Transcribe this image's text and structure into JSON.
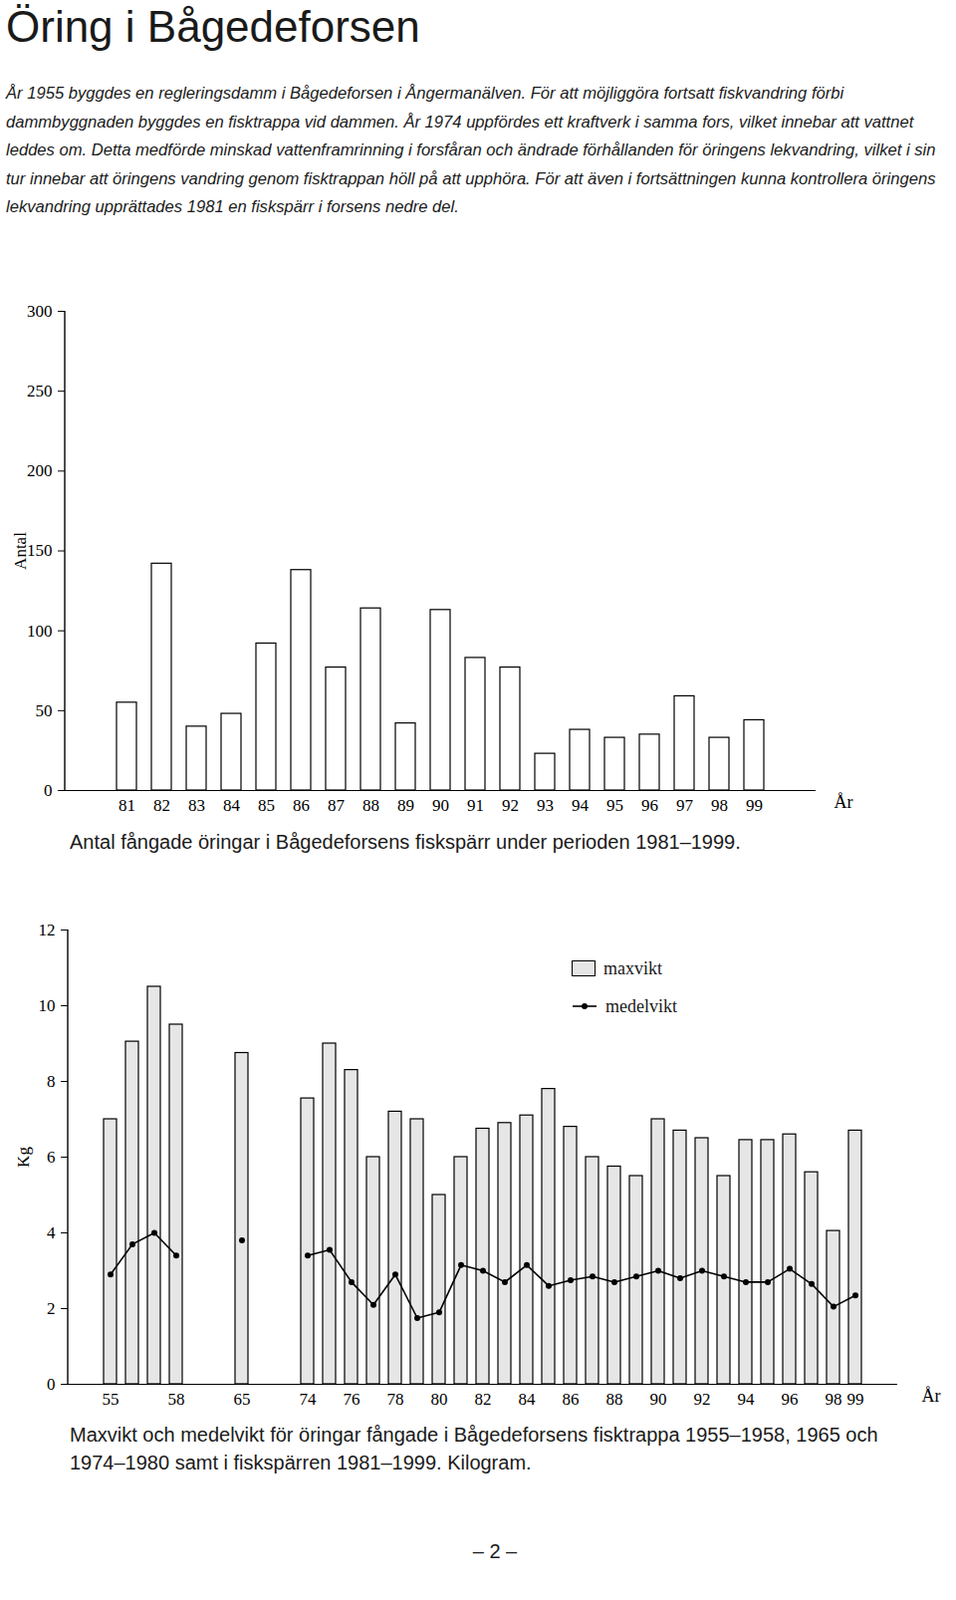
{
  "title": "Öring i Bågedeforsen",
  "text": "År 1955 byggdes en regleringsdamm i Bågedeforsen i Ångermanälven. För att möjliggöra fortsatt fiskvandring förbi dammbyggnaden byggdes en fisktrappa vid dammen. År 1974 uppfördes ett kraftverk i samma fors, vilket innebar att vattnet leddes om. Detta medförde minskad vattenframrinning i forsfåran och ändrade förhållanden för öringens lekvandring, vilket i sin tur innebar att öringens vandring genom fisktrappan höll på att upphöra. För att även i fortsättningen kunna kontrollera öringens lekvandring upprättades 1981 en fiskspärr i forsens nedre del.",
  "page_number": "– 2 –",
  "chart_data": [
    {
      "type": "bar",
      "title": "Antal fångade öringar i Bågedeforsens fiskspärr under perioden 1981–1999.",
      "x_label": "År",
      "y_label": "Antal",
      "categories": [
        "81",
        "82",
        "83",
        "84",
        "85",
        "86",
        "87",
        "88",
        "89",
        "90",
        "91",
        "92",
        "93",
        "94",
        "95",
        "96",
        "97",
        "98",
        "99"
      ],
      "values": [
        55,
        142,
        40,
        48,
        92,
        138,
        77,
        114,
        42,
        113,
        83,
        77,
        23,
        38,
        33,
        35,
        59,
        33,
        44
      ],
      "color": "#ffffff",
      "ylim": [
        0,
        300
      ],
      "yticks": [
        0,
        50,
        100,
        150,
        200,
        250,
        300
      ]
    },
    {
      "type": "bar",
      "title": "Maxvikt och medelvikt för öringar fångade i Bågedeforsens fisktrappa 1955–1958, 1965 och 1974–1980 samt i fiskspärren 1981–1999. Kilogram.",
      "x_label": "År",
      "y_label": "Kg",
      "categories": [
        "55",
        null,
        null,
        "58",
        null,
        null,
        "65",
        null,
        null,
        "74",
        null,
        "76",
        null,
        "78",
        null,
        "80",
        null,
        "82",
        null,
        "84",
        null,
        "86",
        null,
        "88",
        null,
        "90",
        null,
        "92",
        null,
        "94",
        null,
        "96",
        null,
        "98",
        "99"
      ],
      "series": [
        {
          "name": "maxvikt",
          "type": "bar",
          "color": "#e6e6e6",
          "values": [
            7.0,
            9.05,
            10.5,
            9.5,
            null,
            null,
            8.75,
            null,
            null,
            7.55,
            9.0,
            8.3,
            6.0,
            7.2,
            7.0,
            5.0,
            6.0,
            6.75,
            6.9,
            7.1,
            7.8,
            6.8,
            6.0,
            5.75,
            5.5,
            7.0,
            6.7,
            6.5,
            5.5,
            6.45,
            6.45,
            6.6,
            5.6,
            4.05,
            6.7
          ]
        },
        {
          "name": "medelvikt",
          "type": "line",
          "color": "#000000",
          "marker": "circle",
          "line_style": "solid",
          "values": [
            2.9,
            3.7,
            4.0,
            3.4,
            null,
            null,
            3.8,
            null,
            null,
            3.4,
            3.55,
            2.7,
            2.1,
            2.9,
            1.75,
            1.9,
            3.15,
            3.0,
            2.7,
            3.15,
            2.6,
            2.75,
            2.85,
            2.7,
            2.85,
            3.0,
            2.8,
            3.0,
            2.85,
            2.7,
            2.7,
            3.05,
            2.65,
            2.05,
            2.35
          ]
        }
      ],
      "legend": "upper right",
      "ylim": [
        0,
        12
      ],
      "yticks": [
        0,
        2,
        4,
        6,
        8,
        10,
        12
      ]
    }
  ]
}
